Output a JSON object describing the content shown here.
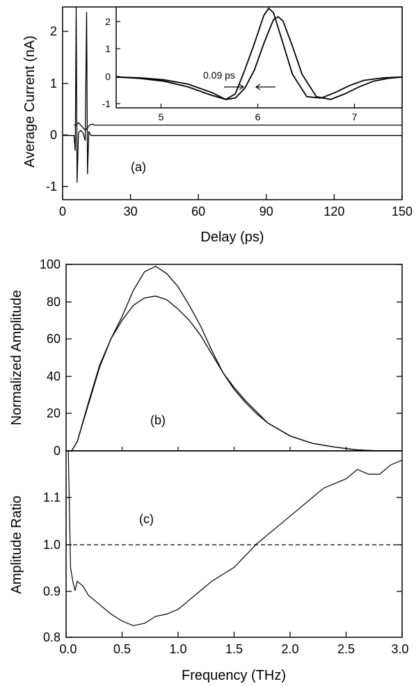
{
  "chart_data": [
    {
      "id": "a",
      "type": "line",
      "annotation": "(a)",
      "xlabel": "Delay (ps)",
      "ylabel": "Average Current (nA)",
      "xlim": [
        0,
        150
      ],
      "ylim": [
        -1.25,
        2.5
      ],
      "xticks": [
        0,
        30,
        60,
        90,
        120,
        150
      ],
      "yticks": [
        -1,
        0,
        1,
        2
      ],
      "series": [
        {
          "color": "#000000",
          "x": [
            0,
            5.0,
            5.6,
            6.0,
            6.4,
            7.0,
            8.0,
            9.0,
            10.0,
            10.6,
            11.0,
            11.6,
            12.5,
            14,
            20,
            40,
            80,
            120,
            150
          ],
          "y": [
            0,
            0,
            -0.3,
            2.5,
            -0.92,
            0.05,
            0.1,
            0.05,
            -0.1,
            2.4,
            -0.75,
            0.08,
            0.0,
            0.0,
            0.0,
            0.0,
            0.0,
            0.0,
            0.0
          ]
        },
        {
          "color": "#000000",
          "x": [
            5.0,
            6.0,
            7.0,
            8.0,
            9.0,
            10.0,
            11.0,
            12.0,
            13.0,
            14,
            20,
            40,
            80,
            120,
            150
          ],
          "y": [
            0.2,
            0.2,
            0.25,
            0.2,
            0.15,
            0.1,
            0.15,
            0.2,
            0.22,
            0.2,
            0.2,
            0.2,
            0.2,
            0.2,
            0.2
          ]
        }
      ],
      "inset": {
        "xlim": [
          4.5,
          7.5
        ],
        "ylim": [
          -1.1,
          2.5
        ],
        "xticks": [
          5,
          6,
          7
        ],
        "yticks": [
          -1,
          0,
          1,
          2
        ],
        "annotation": "0.09 ps",
        "series": [
          {
            "color": "#000000",
            "x": [
              4.5,
              4.75,
              5.0,
              5.25,
              5.5,
              5.65,
              5.75,
              5.85,
              5.95,
              6.05,
              6.1,
              6.15,
              6.25,
              6.35,
              6.5,
              6.65,
              6.8,
              6.95,
              7.1,
              7.3,
              7.5
            ],
            "y": [
              0,
              -0.03,
              -0.1,
              -0.25,
              -0.55,
              -0.8,
              -0.6,
              0.25,
              1.2,
              2.2,
              2.45,
              2.3,
              1.2,
              0.1,
              -0.7,
              -0.75,
              -0.55,
              -0.3,
              -0.12,
              -0.03,
              0
            ]
          },
          {
            "color": "#000000",
            "x": [
              4.5,
              4.75,
              5.0,
              5.25,
              5.5,
              5.65,
              5.75,
              5.85,
              5.95,
              6.05,
              6.15,
              6.2,
              6.25,
              6.35,
              6.45,
              6.6,
              6.75,
              6.9,
              7.05,
              7.2,
              7.35,
              7.5
            ],
            "y": [
              0,
              -0.05,
              -0.15,
              -0.35,
              -0.65,
              -0.8,
              -0.75,
              -0.4,
              0.25,
              1.2,
              2.05,
              2.15,
              2.0,
              1.1,
              0.1,
              -0.7,
              -0.8,
              -0.6,
              -0.35,
              -0.15,
              -0.05,
              0
            ]
          }
        ]
      }
    },
    {
      "id": "b",
      "type": "line",
      "annotation": "(b)",
      "ylabel": "Normalized Amplitude",
      "xlim": [
        0,
        3.0
      ],
      "ylim": [
        0,
        100
      ],
      "yticks": [
        0,
        20,
        40,
        60,
        80,
        100
      ],
      "series": [
        {
          "color": "#000000",
          "x": [
            0,
            0.05,
            0.1,
            0.2,
            0.3,
            0.4,
            0.5,
            0.6,
            0.7,
            0.8,
            0.9,
            1.0,
            1.1,
            1.2,
            1.3,
            1.4,
            1.5,
            1.6,
            1.7,
            1.8,
            2.0,
            2.2,
            2.4,
            2.6,
            2.8,
            3.0
          ],
          "y": [
            0,
            0,
            5,
            25,
            45,
            60,
            72,
            86,
            96,
            99,
            95,
            88,
            78,
            67,
            54,
            42,
            33,
            26,
            20,
            15,
            8,
            4,
            2,
            0.5,
            0,
            0
          ]
        },
        {
          "color": "#000000",
          "x": [
            0,
            0.05,
            0.1,
            0.2,
            0.3,
            0.4,
            0.5,
            0.6,
            0.7,
            0.8,
            0.9,
            1.0,
            1.1,
            1.2,
            1.3,
            1.4,
            1.5,
            1.6,
            1.7,
            1.8,
            2.0,
            2.2,
            2.4,
            2.6,
            2.8,
            3.0
          ],
          "y": [
            0,
            0,
            5,
            26,
            46,
            60,
            70,
            78,
            82,
            83,
            81,
            76,
            70,
            62,
            52,
            42,
            34,
            27,
            21,
            15,
            8,
            4,
            2,
            0.5,
            0,
            0
          ]
        }
      ]
    },
    {
      "id": "c",
      "type": "line",
      "annotation": "(c)",
      "xlabel": "Frequency (THz)",
      "ylabel": "Amplitude Ratio",
      "xlim": [
        0,
        3.0
      ],
      "ylim": [
        0.8,
        1.2
      ],
      "xticks": [
        0.0,
        0.5,
        1.0,
        1.5,
        2.0,
        2.5,
        3.0
      ],
      "yticks": [
        0.8,
        0.9,
        1.0,
        1.1
      ],
      "reference_line": 1.0,
      "series": [
        {
          "color": "#000000",
          "x": [
            0.02,
            0.04,
            0.06,
            0.08,
            0.1,
            0.15,
            0.2,
            0.3,
            0.4,
            0.5,
            0.6,
            0.7,
            0.8,
            0.9,
            1.0,
            1.1,
            1.2,
            1.3,
            1.4,
            1.5,
            1.6,
            1.7,
            1.8,
            1.9,
            2.0,
            2.1,
            2.2,
            2.3,
            2.4,
            2.5,
            2.6,
            2.7,
            2.8,
            2.9,
            3.0
          ],
          "y": [
            1.2,
            0.95,
            0.92,
            0.9,
            0.92,
            0.91,
            0.89,
            0.87,
            0.85,
            0.835,
            0.825,
            0.83,
            0.845,
            0.85,
            0.86,
            0.88,
            0.9,
            0.92,
            0.935,
            0.95,
            0.975,
            1.0,
            1.02,
            1.04,
            1.06,
            1.08,
            1.1,
            1.12,
            1.13,
            1.14,
            1.16,
            1.15,
            1.15,
            1.17,
            1.18
          ]
        }
      ]
    }
  ]
}
